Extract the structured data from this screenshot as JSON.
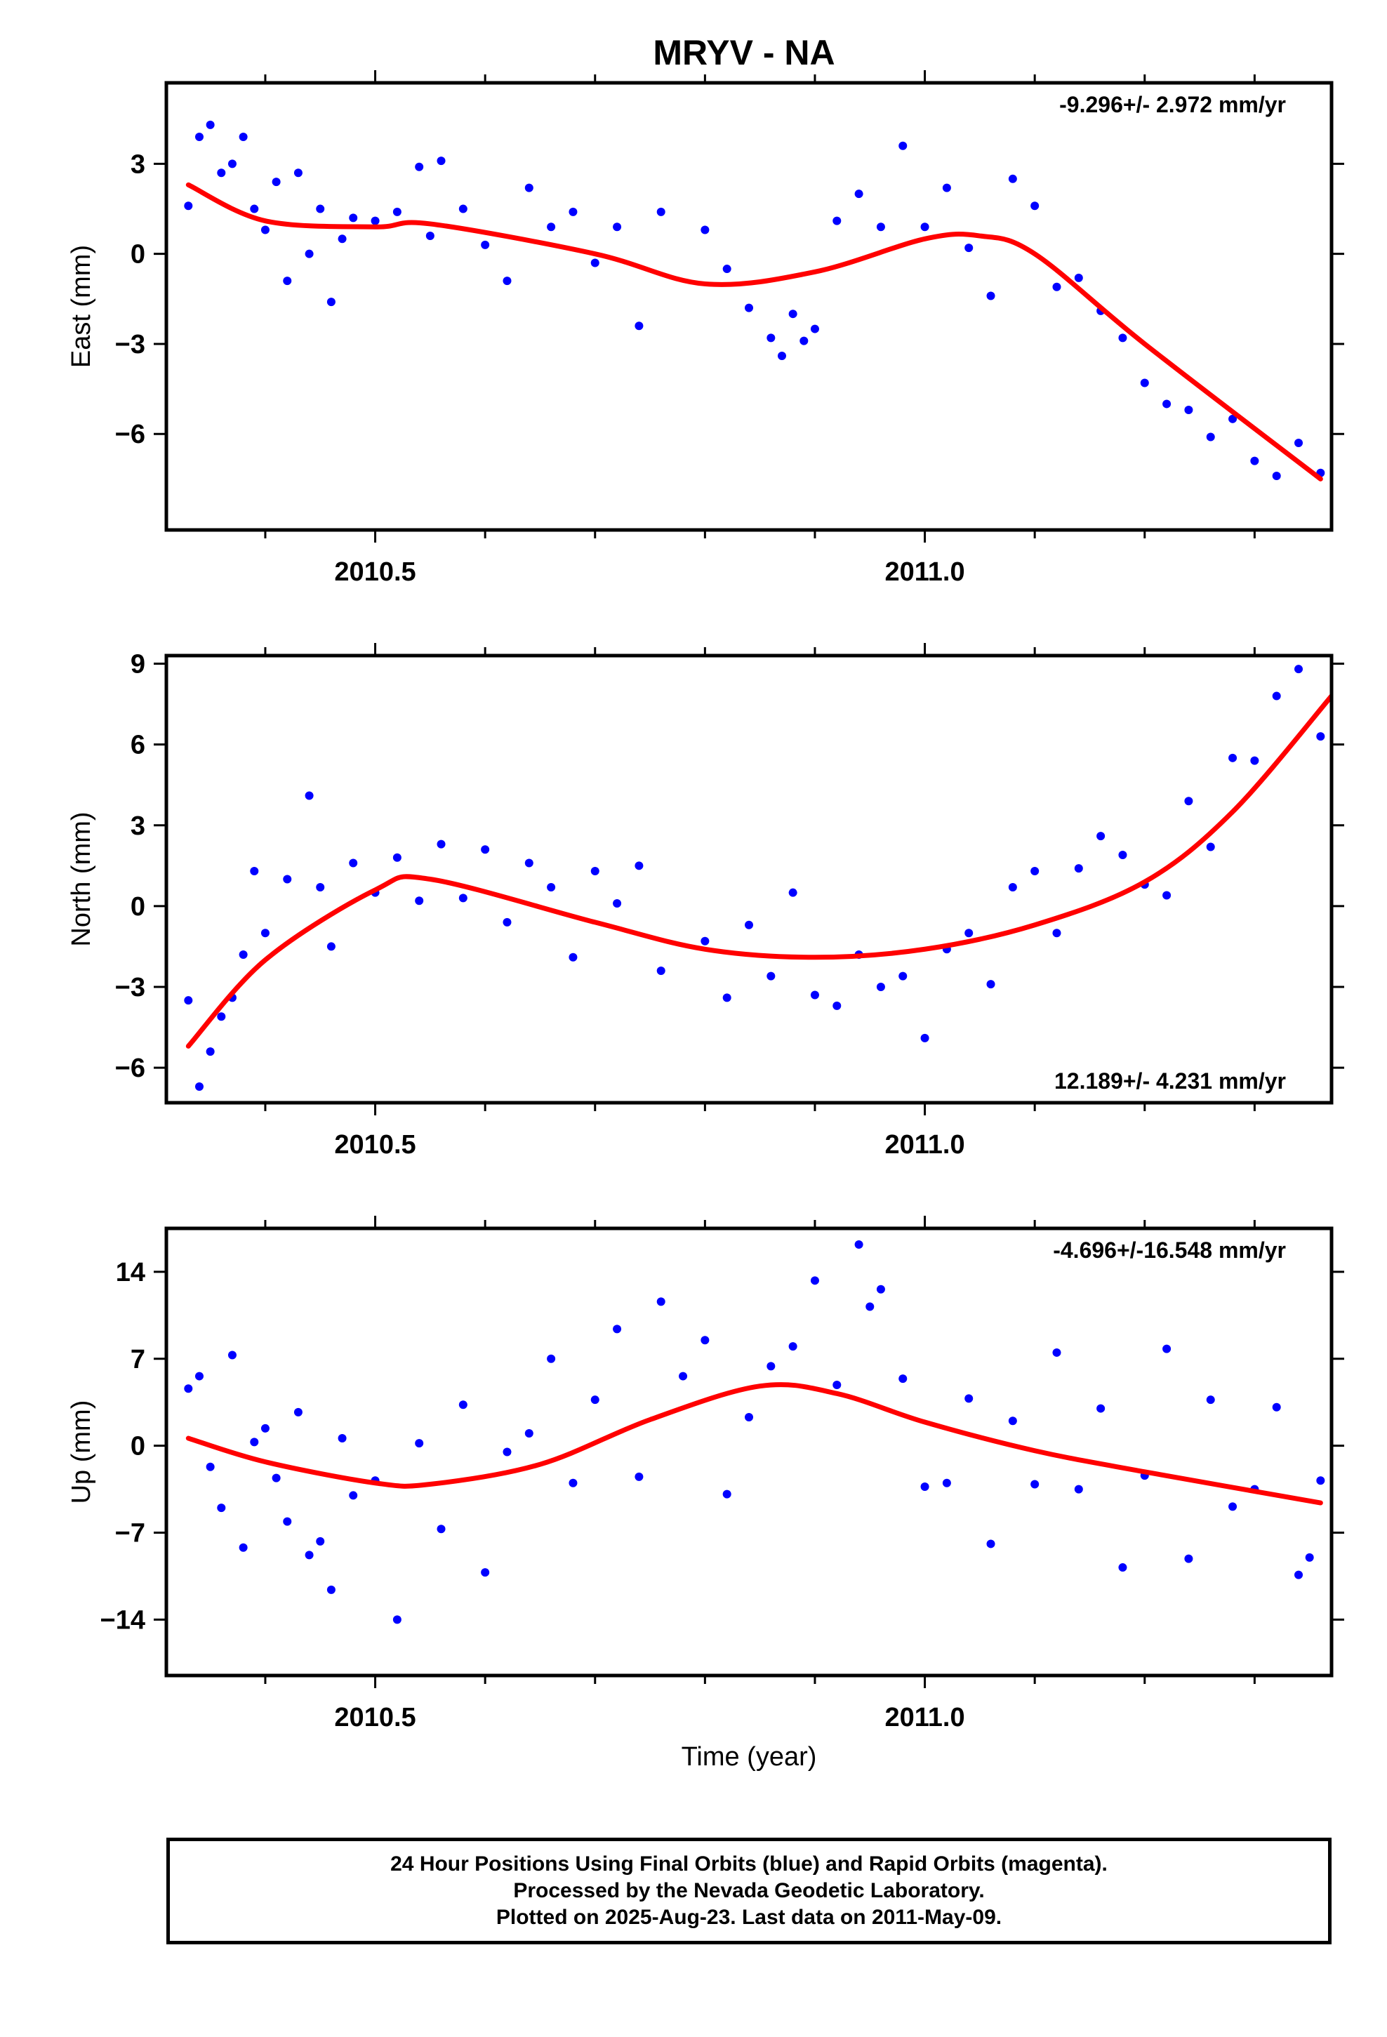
{
  "title": "MRYV - NA",
  "footer": {
    "line1": "24 Hour Positions Using Final Orbits (blue) and Rapid Orbits (magenta).",
    "line2": "Processed by the Nevada Geodetic Laboratory.",
    "line3": "Plotted on 2025-Aug-23. Last data on 2011-May-09."
  },
  "colors": {
    "points": "#0000ff",
    "fit": "#ff0000",
    "axes": "#000000"
  },
  "chart_data": [
    {
      "type": "scatter",
      "ylabel": "East (mm)",
      "xlabel": "",
      "rate": "-9.296+/- 2.972 mm/yr",
      "rate_position": "top-right",
      "xlim": [
        2010.31,
        2011.37
      ],
      "ylim": [
        -9.2,
        5.7
      ],
      "xticks": [
        2010.5,
        2011.0
      ],
      "xtick_labels": [
        "2010.5",
        "2011.0"
      ],
      "yticks": [
        3,
        0,
        -3,
        -6
      ],
      "ytick_labels": [
        "3",
        "0",
        "−3",
        "−6"
      ],
      "fit": {
        "x": [
          2010.33,
          2010.4,
          2010.5,
          2010.55,
          2010.7,
          2010.8,
          2010.9,
          2011.0,
          2011.05,
          2011.1,
          2011.2,
          2011.36
        ],
        "y": [
          2.3,
          1.1,
          0.9,
          1.0,
          0.0,
          -1.0,
          -0.6,
          0.5,
          0.6,
          0.0,
          -3.0,
          -7.5
        ]
      },
      "points": {
        "x": [
          2010.33,
          2010.34,
          2010.35,
          2010.36,
          2010.37,
          2010.38,
          2010.39,
          2010.4,
          2010.41,
          2010.42,
          2010.43,
          2010.44,
          2010.45,
          2010.46,
          2010.47,
          2010.48,
          2010.5,
          2010.52,
          2010.54,
          2010.55,
          2010.56,
          2010.58,
          2010.6,
          2010.62,
          2010.64,
          2010.66,
          2010.68,
          2010.7,
          2010.72,
          2010.74,
          2010.76,
          2010.8,
          2010.82,
          2010.84,
          2010.86,
          2010.87,
          2010.88,
          2010.89,
          2010.9,
          2010.92,
          2010.94,
          2010.96,
          2010.98,
          2011.0,
          2011.02,
          2011.04,
          2011.06,
          2011.08,
          2011.1,
          2011.12,
          2011.14,
          2011.16,
          2011.18,
          2011.2,
          2011.22,
          2011.24,
          2011.26,
          2011.28,
          2011.3,
          2011.32,
          2011.34,
          2011.36
        ],
        "y": [
          1.6,
          3.9,
          4.3,
          2.7,
          3.0,
          3.9,
          1.5,
          0.8,
          2.4,
          -0.9,
          2.7,
          0.0,
          1.5,
          -1.6,
          0.5,
          1.2,
          1.1,
          1.4,
          2.9,
          0.6,
          3.1,
          1.5,
          0.3,
          -0.9,
          2.2,
          0.9,
          1.4,
          -0.3,
          0.9,
          -2.4,
          1.4,
          0.8,
          -0.5,
          -1.8,
          -2.8,
          -3.4,
          -2.0,
          -2.9,
          -2.5,
          1.1,
          2.0,
          0.9,
          3.6,
          0.9,
          2.2,
          0.2,
          -1.4,
          2.5,
          1.6,
          -1.1,
          -0.8,
          -1.9,
          -2.8,
          -4.3,
          -5.0,
          -5.2,
          -6.1,
          -5.5,
          -6.9,
          -7.4,
          -6.3,
          -7.3
        ]
      }
    },
    {
      "type": "scatter",
      "ylabel": "North (mm)",
      "xlabel": "",
      "rate": "12.189+/- 4.231 mm/yr",
      "rate_position": "bottom-right",
      "xlim": [
        2010.31,
        2011.37
      ],
      "ylim": [
        -7.3,
        9.3
      ],
      "xticks": [
        2010.5,
        2011.0
      ],
      "xtick_labels": [
        "2010.5",
        "2011.0"
      ],
      "yticks": [
        9,
        6,
        3,
        0,
        -3,
        -6
      ],
      "ytick_labels": [
        "9",
        "6",
        "3",
        "0",
        "−3",
        "−6"
      ],
      "fit": {
        "x": [
          2010.33,
          2010.4,
          2010.5,
          2010.55,
          2010.7,
          2010.8,
          2010.9,
          2011.0,
          2011.1,
          2011.2,
          2011.28,
          2011.37
        ],
        "y": [
          -5.2,
          -2.0,
          0.6,
          1.0,
          -0.6,
          -1.6,
          -1.9,
          -1.6,
          -0.7,
          0.9,
          3.5,
          7.8
        ]
      },
      "points": {
        "x": [
          2010.33,
          2010.34,
          2010.35,
          2010.36,
          2010.37,
          2010.38,
          2010.39,
          2010.4,
          2010.42,
          2010.44,
          2010.45,
          2010.46,
          2010.48,
          2010.5,
          2010.52,
          2010.54,
          2010.56,
          2010.58,
          2010.6,
          2010.62,
          2010.64,
          2010.66,
          2010.68,
          2010.7,
          2010.72,
          2010.74,
          2010.76,
          2010.8,
          2010.82,
          2010.84,
          2010.86,
          2010.88,
          2010.9,
          2010.92,
          2010.94,
          2010.96,
          2010.98,
          2011.0,
          2011.02,
          2011.04,
          2011.06,
          2011.08,
          2011.1,
          2011.12,
          2011.14,
          2011.16,
          2011.18,
          2011.2,
          2011.22,
          2011.24,
          2011.26,
          2011.28,
          2011.3,
          2011.32,
          2011.34,
          2011.36
        ],
        "y": [
          -3.5,
          -6.7,
          -5.4,
          -4.1,
          -3.4,
          -1.8,
          1.3,
          -1.0,
          1.0,
          4.1,
          0.7,
          -1.5,
          1.6,
          0.5,
          1.8,
          0.2,
          2.3,
          0.3,
          2.1,
          -0.6,
          1.6,
          0.7,
          -1.9,
          1.3,
          0.1,
          1.5,
          -2.4,
          -1.3,
          -3.4,
          -0.7,
          -2.6,
          0.5,
          -3.3,
          -3.7,
          -1.8,
          -3.0,
          -2.6,
          -4.9,
          -1.6,
          -1.0,
          -2.9,
          0.7,
          1.3,
          -1.0,
          1.4,
          2.6,
          1.9,
          0.8,
          0.4,
          3.9,
          2.2,
          5.5,
          5.4,
          7.8,
          8.8,
          6.3
        ]
      }
    },
    {
      "type": "scatter",
      "ylabel": "Up (mm)",
      "xlabel": "Time (year)",
      "rate": "-4.696+/-16.548 mm/yr",
      "rate_position": "top-right",
      "xlim": [
        2010.31,
        2011.37
      ],
      "ylim": [
        -18.5,
        17.5
      ],
      "xticks": [
        2010.5,
        2011.0
      ],
      "xtick_labels": [
        "2010.5",
        "2011.0"
      ],
      "yticks": [
        14,
        7,
        0,
        -7,
        -14
      ],
      "ytick_labels": [
        "14",
        "7",
        "0",
        "−7",
        "−14"
      ],
      "fit": {
        "x": [
          2010.33,
          2010.4,
          2010.5,
          2010.55,
          2010.65,
          2010.75,
          2010.85,
          2010.92,
          2011.0,
          2011.1,
          2011.2,
          2011.36
        ],
        "y": [
          0.6,
          -1.3,
          -3.0,
          -3.1,
          -1.5,
          2.1,
          4.8,
          4.2,
          1.9,
          -0.4,
          -2.1,
          -4.6
        ]
      },
      "points": {
        "x": [
          2010.33,
          2010.34,
          2010.35,
          2010.36,
          2010.37,
          2010.38,
          2010.39,
          2010.4,
          2010.41,
          2010.42,
          2010.43,
          2010.44,
          2010.45,
          2010.46,
          2010.47,
          2010.48,
          2010.5,
          2010.52,
          2010.54,
          2010.56,
          2010.58,
          2010.6,
          2010.62,
          2010.64,
          2010.66,
          2010.68,
          2010.7,
          2010.72,
          2010.74,
          2010.76,
          2010.78,
          2010.8,
          2010.82,
          2010.84,
          2010.86,
          2010.88,
          2010.9,
          2010.92,
          2010.94,
          2010.95,
          2010.96,
          2010.98,
          2011.0,
          2011.02,
          2011.04,
          2011.06,
          2011.08,
          2011.1,
          2011.12,
          2011.14,
          2011.16,
          2011.18,
          2011.2,
          2011.22,
          2011.24,
          2011.26,
          2011.28,
          2011.3,
          2011.32,
          2011.34,
          2011.35,
          2011.36
        ],
        "y": [
          4.6,
          5.6,
          -1.7,
          -5.0,
          7.3,
          -8.2,
          0.3,
          1.4,
          -2.6,
          -6.1,
          2.7,
          -8.8,
          -7.7,
          -11.6,
          0.6,
          -4.0,
          -2.8,
          -14.0,
          0.2,
          -6.7,
          3.3,
          -10.2,
          -0.5,
          1.0,
          7.0,
          -3.0,
          3.7,
          9.4,
          -2.5,
          11.6,
          5.6,
          8.5,
          -3.9,
          2.3,
          6.4,
          8.0,
          13.3,
          4.9,
          16.2,
          11.2,
          12.6,
          5.4,
          -3.3,
          -3.0,
          3.8,
          -7.9,
          2.0,
          -3.1,
          7.5,
          -3.5,
          3.0,
          -9.8,
          -2.4,
          7.8,
          -9.1,
          3.7,
          -4.9,
          -3.5,
          3.1,
          -10.4,
          -9.0,
          -2.8
        ]
      }
    }
  ]
}
